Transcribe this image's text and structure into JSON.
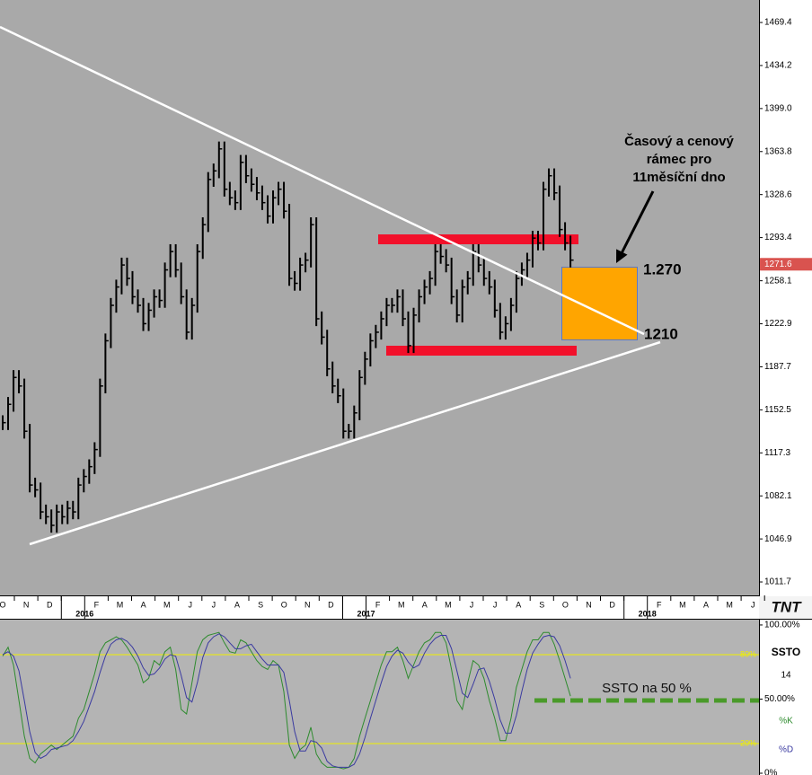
{
  "chart_data": [
    {
      "type": "ohlc",
      "color": "#000000",
      "high": [
        1148,
        1163,
        1185,
        1185,
        1178,
        1141,
        1097,
        1093,
        1075,
        1071,
        1075,
        1075,
        1078,
        1078,
        1097,
        1104,
        1112,
        1126,
        1178,
        1215,
        1244,
        1259,
        1277,
        1277,
        1266,
        1251,
        1244,
        1240,
        1251,
        1251,
        1273,
        1288,
        1288,
        1273,
        1251,
        1244,
        1288,
        1310,
        1347,
        1354,
        1372,
        1372,
        1339,
        1332,
        1361,
        1361,
        1350,
        1343,
        1336,
        1328,
        1332,
        1339,
        1339,
        1321,
        1266,
        1277,
        1281,
        1310,
        1310,
        1233,
        1218,
        1192,
        1178,
        1170,
        1141,
        1156,
        1185,
        1200,
        1215,
        1222,
        1233,
        1244,
        1244,
        1251,
        1251,
        1233,
        1236,
        1251,
        1259,
        1266,
        1288,
        1288,
        1284,
        1277,
        1251,
        1259,
        1266,
        1288,
        1288,
        1277,
        1266,
        1259,
        1240,
        1229,
        1244,
        1266,
        1273,
        1281,
        1299,
        1299,
        1339,
        1350,
        1350,
        1336,
        1306,
        1295
      ],
      "low": [
        1136,
        1136,
        1151,
        1166,
        1129,
        1085,
        1081,
        1063,
        1059,
        1052,
        1052,
        1059,
        1059,
        1063,
        1063,
        1085,
        1092,
        1100,
        1114,
        1166,
        1203,
        1232,
        1247,
        1254,
        1239,
        1232,
        1217,
        1217,
        1228,
        1236,
        1236,
        1261,
        1261,
        1239,
        1210,
        1210,
        1232,
        1276,
        1298,
        1335,
        1342,
        1327,
        1320,
        1316,
        1316,
        1338,
        1331,
        1324,
        1316,
        1305,
        1305,
        1320,
        1309,
        1254,
        1250,
        1250,
        1265,
        1269,
        1221,
        1206,
        1180,
        1166,
        1158,
        1129,
        1129,
        1129,
        1144,
        1173,
        1188,
        1203,
        1210,
        1221,
        1232,
        1232,
        1221,
        1199,
        1199,
        1224,
        1239,
        1247,
        1254,
        1272,
        1265,
        1239,
        1224,
        1224,
        1247,
        1254,
        1265,
        1254,
        1247,
        1228,
        1210,
        1210,
        1217,
        1232,
        1254,
        1261,
        1269,
        1283,
        1283,
        1327,
        1324,
        1294,
        1283,
        1269
      ],
      "close": [
        1142,
        1157,
        1179,
        1172,
        1135,
        1091,
        1087,
        1069,
        1065,
        1058,
        1069,
        1065,
        1072,
        1069,
        1091,
        1098,
        1106,
        1120,
        1172,
        1209,
        1238,
        1253,
        1271,
        1260,
        1245,
        1238,
        1223,
        1234,
        1245,
        1242,
        1267,
        1282,
        1267,
        1245,
        1216,
        1238,
        1282,
        1304,
        1341,
        1348,
        1366,
        1333,
        1326,
        1322,
        1355,
        1344,
        1337,
        1330,
        1322,
        1311,
        1326,
        1333,
        1315,
        1260,
        1256,
        1271,
        1275,
        1304,
        1227,
        1212,
        1186,
        1172,
        1164,
        1135,
        1135,
        1150,
        1179,
        1194,
        1209,
        1216,
        1227,
        1238,
        1238,
        1245,
        1227,
        1205,
        1230,
        1245,
        1253,
        1260,
        1282,
        1278,
        1271,
        1245,
        1230,
        1253,
        1260,
        1282,
        1271,
        1260,
        1253,
        1234,
        1216,
        1223,
        1238,
        1260,
        1267,
        1275,
        1293,
        1289,
        1333,
        1344,
        1330,
        1300,
        1289,
        1275
      ],
      "ylim": [
        1000.7,
        1487.8
      ],
      "yticks": [
        1469.4,
        1434.2,
        {
          "value": 1399,
          "label": "1399.0"
        },
        1363.8,
        1328.6,
        1293.4,
        1258.1,
        1222.9,
        1187.7,
        1152.5,
        1117.3,
        1082.1,
        1046.9,
        1011.7
      ],
      "last_price": 1271.6,
      "months": [
        "O",
        "N",
        "D",
        null,
        "F",
        "M",
        "A",
        "M",
        "J",
        "J",
        "A",
        "S",
        "O",
        "N",
        "D",
        null,
        "F",
        "M",
        "A",
        "M",
        "J",
        "J",
        "A",
        "S",
        "O",
        "N",
        "D",
        null,
        "F",
        "M",
        "A",
        "M",
        "J"
      ],
      "years": [
        "2016",
        "2017",
        "2018"
      ],
      "note": [
        "Časový a cenový",
        "rámec pro",
        "11měsíční dno"
      ],
      "level_high": "1.270",
      "level_low": "1210",
      "logo": "TNT"
    },
    {
      "type": "stochastic",
      "name": "SSTO",
      "period": 14,
      "series": [
        {
          "name": "%K",
          "color": "#2e8b2e",
          "values": [
            79,
            85,
            73,
            49,
            25,
            10,
            7,
            13,
            16,
            19,
            16,
            19,
            22,
            25,
            37,
            43,
            55,
            67,
            82,
            88,
            90,
            92,
            90,
            85,
            79,
            73,
            61,
            64,
            76,
            73,
            82,
            85,
            70,
            43,
            40,
            61,
            82,
            90,
            93,
            94,
            95,
            88,
            82,
            81,
            90,
            88,
            82,
            76,
            72,
            70,
            76,
            73,
            55,
            19,
            10,
            16,
            19,
            31,
            13,
            7,
            4,
            4,
            4,
            3,
            4,
            10,
            25,
            37,
            49,
            61,
            73,
            82,
            82,
            85,
            76,
            64,
            73,
            82,
            88,
            90,
            95,
            95,
            88,
            70,
            49,
            43,
            61,
            76,
            73,
            64,
            49,
            37,
            22,
            22,
            37,
            58,
            70,
            82,
            90,
            90,
            95,
            95,
            87,
            76,
            64,
            52
          ]
        },
        {
          "name": "%D",
          "color": "#3a3aa0",
          "values": [
            80,
            82,
            79,
            69,
            49,
            28,
            14,
            10,
            12,
            16,
            17,
            18,
            19,
            22,
            28,
            35,
            45,
            55,
            68,
            79,
            87,
            90,
            91,
            89,
            85,
            79,
            71,
            66,
            67,
            71,
            77,
            80,
            79,
            66,
            51,
            48,
            61,
            78,
            88,
            92,
            94,
            92,
            88,
            84,
            84,
            86,
            87,
            82,
            77,
            73,
            73,
            73,
            68,
            49,
            28,
            15,
            15,
            22,
            21,
            17,
            8,
            5,
            4,
            4,
            4,
            6,
            13,
            24,
            37,
            49,
            61,
            72,
            79,
            83,
            81,
            75,
            71,
            73,
            81,
            87,
            91,
            93,
            93,
            84,
            69,
            54,
            51,
            60,
            70,
            71,
            62,
            50,
            36,
            27,
            27,
            39,
            55,
            70,
            81,
            87,
            92,
            93,
            92,
            86,
            76,
            64
          ]
        }
      ],
      "ylim": [
        -1.2,
        103.6
      ],
      "yticks": [
        {
          "value": 100,
          "label": "100.00%"
        },
        {
          "value": 50,
          "label": "50.00%"
        },
        {
          "value": 0,
          "label": "0%"
        }
      ],
      "guide_ticks": [
        {
          "value": 80,
          "label": "80%"
        },
        {
          "value": 20,
          "label": "20%"
        }
      ],
      "guide_color": "#f0f000",
      "annotation": "SSTO na 50 %"
    }
  ]
}
